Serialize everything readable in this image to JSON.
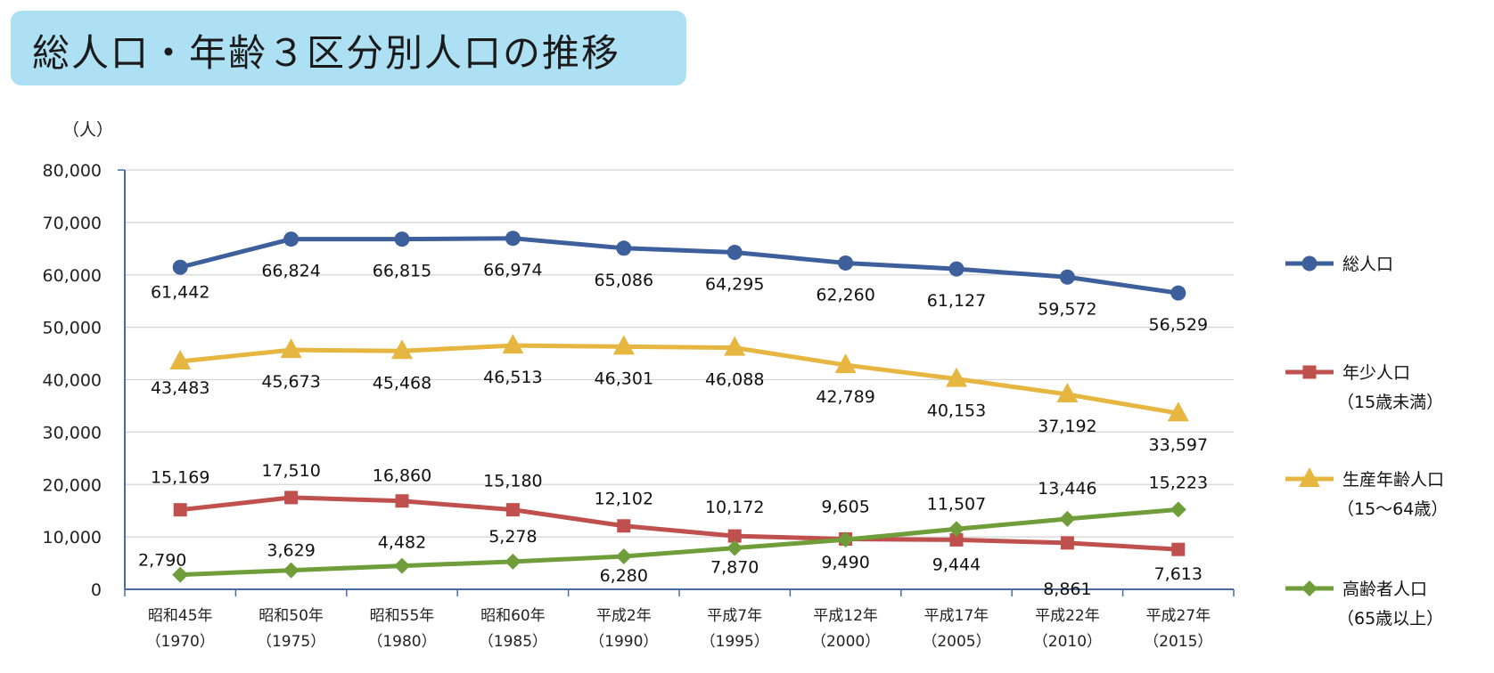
{
  "title": "総人口・年齢３区分別人口の推移",
  "colors": {
    "total": "#3d5f9c",
    "youth": "#c0504d",
    "working": "#e6b640",
    "elderly": "#6f9d3a",
    "title_bg": "#aee0f4"
  },
  "chart_data": {
    "type": "line",
    "title": "",
    "ylabel": "（人）",
    "xlabel": "",
    "ylim": [
      0,
      80000
    ],
    "yticks": [
      "0",
      "10,000",
      "20,000",
      "30,000",
      "40,000",
      "50,000",
      "60,000",
      "70,000",
      "80,000"
    ],
    "grid": true,
    "legend": "right",
    "categories": [
      [
        "昭和45年",
        "（1970）"
      ],
      [
        "昭和50年",
        "（1975）"
      ],
      [
        "昭和55年",
        "（1980）"
      ],
      [
        "昭和60年",
        "（1985）"
      ],
      [
        "平成2年",
        "（1990）"
      ],
      [
        "平成7年",
        "（1995）"
      ],
      [
        "平成12年",
        "（2000）"
      ],
      [
        "平成17年",
        "（2005）"
      ],
      [
        "平成22年",
        "（2010）"
      ],
      [
        "平成27年",
        "（2015）"
      ]
    ],
    "series": [
      {
        "key": "total",
        "name": "総人口",
        "name2": "",
        "marker": "circle",
        "values": [
          61442,
          66824,
          66815,
          66974,
          65086,
          64295,
          62260,
          61127,
          59572,
          56529
        ],
        "labels": [
          "61,442",
          "66,824",
          "66,815",
          "66,974",
          "65,086",
          "64,295",
          "62,260",
          "61,127",
          "59,572",
          "56,529"
        ]
      },
      {
        "key": "youth",
        "name": "年少人口",
        "name2": "（15歳未満）",
        "marker": "square",
        "values": [
          15169,
          17510,
          16860,
          15180,
          12102,
          10172,
          9605,
          9444,
          8861,
          7613
        ],
        "labels": [
          "15,169",
          "17,510",
          "16,860",
          "15,180",
          "12,102",
          "10,172",
          "9,605",
          "9,444",
          "8,861",
          "7,613"
        ]
      },
      {
        "key": "working",
        "name": "生産年齢人口",
        "name2": "（15～64歳）",
        "marker": "triangle",
        "values": [
          43483,
          45673,
          45468,
          46513,
          46301,
          46088,
          42789,
          40153,
          37192,
          33597
        ],
        "labels": [
          "43,483",
          "45,673",
          "45,468",
          "46,513",
          "46,301",
          "46,088",
          "42,789",
          "40,153",
          "37,192",
          "33,597"
        ]
      },
      {
        "key": "elderly",
        "name": "高齢者人口",
        "name2": "（65歳以上）",
        "marker": "diamond",
        "values": [
          2790,
          3629,
          4482,
          5278,
          6280,
          7870,
          9490,
          11507,
          13446,
          15223
        ],
        "labels": [
          "2,790",
          "3,629",
          "4,482",
          "5,278",
          "6,280",
          "7,870",
          "9,490",
          "11,507",
          "13,446",
          "15,223"
        ]
      }
    ]
  }
}
